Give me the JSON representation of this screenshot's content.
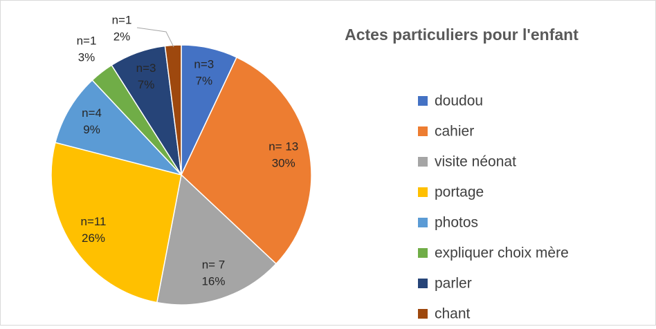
{
  "chart_data": {
    "type": "pie",
    "title": "Actes particuliers pour l'enfant",
    "categories": [
      "doudou",
      "cahier",
      "visite néonat",
      "portage",
      "photos",
      "expliquer choix mère",
      "parler",
      "chant"
    ],
    "values": [
      7,
      30,
      16,
      26,
      9,
      3,
      7,
      2
    ],
    "value_labels": [
      "7%",
      "30%",
      "16%",
      "26%",
      "9%",
      "3%",
      "7%",
      "2%"
    ],
    "counts": [
      3,
      13,
      7,
      11,
      4,
      1,
      3,
      1
    ],
    "count_labels": [
      "n=3",
      "n= 13",
      "n= 7",
      "n=11",
      "n=4",
      "n=1",
      "n=3",
      "n=1"
    ],
    "colors": [
      "#4472c4",
      "#ed7d31",
      "#a5a5a5",
      "#ffc000",
      "#5b9bd5",
      "#70ad47",
      "#264478",
      "#9e480e"
    ],
    "legend": "right"
  }
}
